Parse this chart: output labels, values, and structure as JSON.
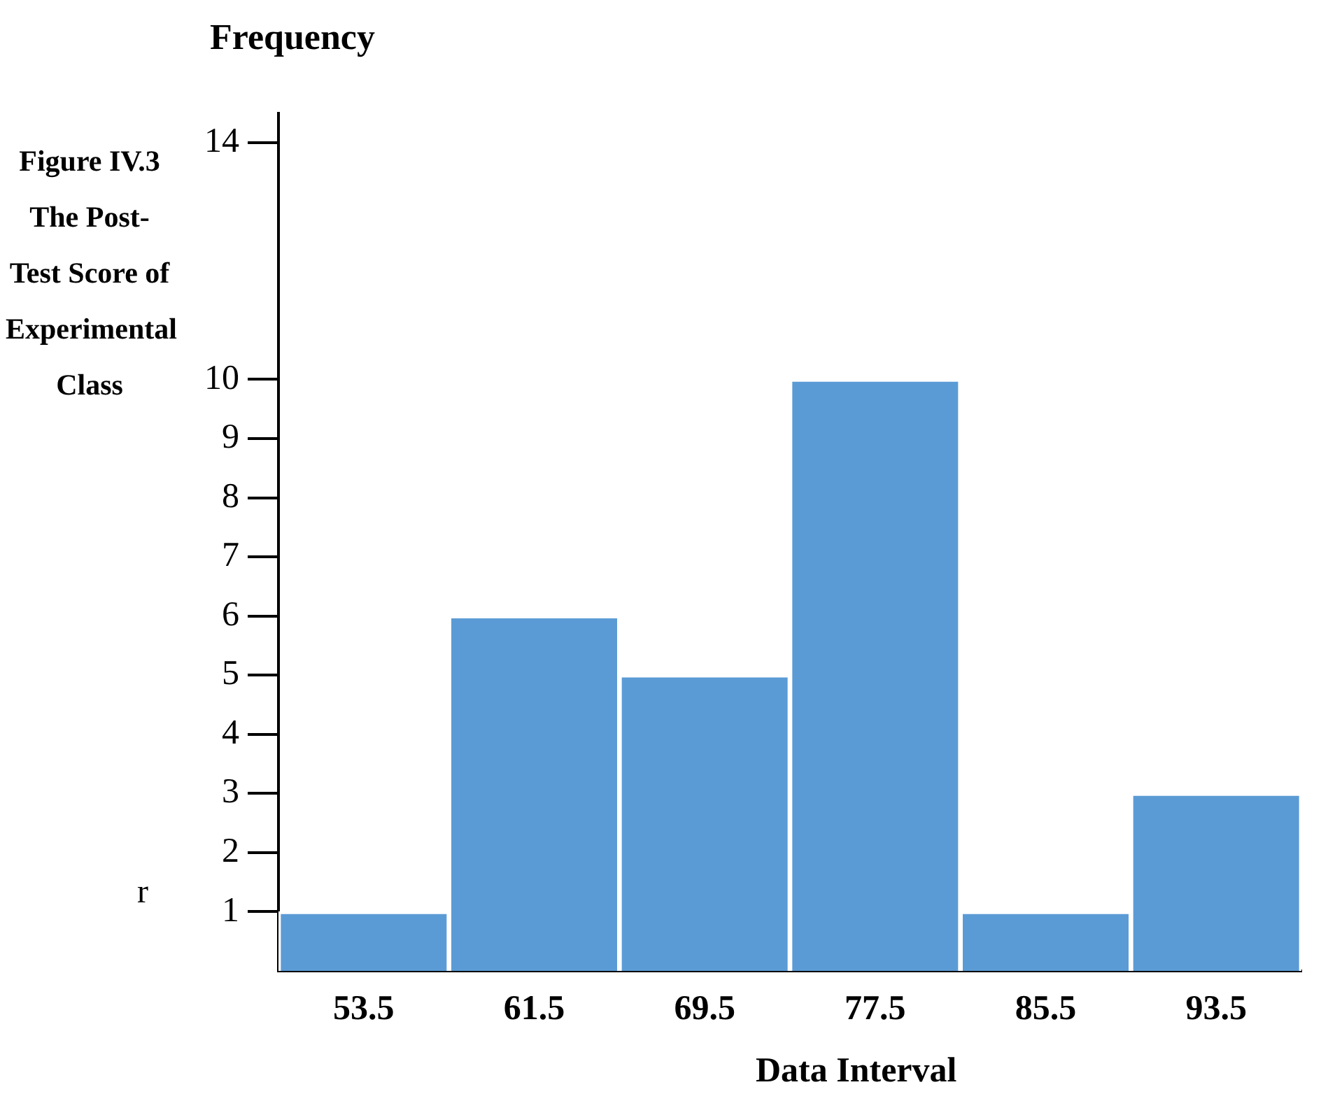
{
  "chart_data": {
    "type": "bar",
    "title": "Figure IV.3 The Post-Test Score of Experimental Class",
    "ylabel": "Frequency",
    "xlabel": "Data Interval",
    "annotations": [
      "r"
    ],
    "categories": [
      "53.5",
      "61.5",
      "69.5",
      "77.5",
      "85.5",
      "93.5"
    ],
    "values": [
      1,
      6,
      5,
      10,
      1,
      3
    ],
    "color": "#5b9bd5",
    "ylim": [
      0,
      14.5
    ],
    "yticks": [
      1,
      2,
      3,
      4,
      5,
      6,
      7,
      8,
      9,
      10,
      14
    ],
    "grid": false
  }
}
